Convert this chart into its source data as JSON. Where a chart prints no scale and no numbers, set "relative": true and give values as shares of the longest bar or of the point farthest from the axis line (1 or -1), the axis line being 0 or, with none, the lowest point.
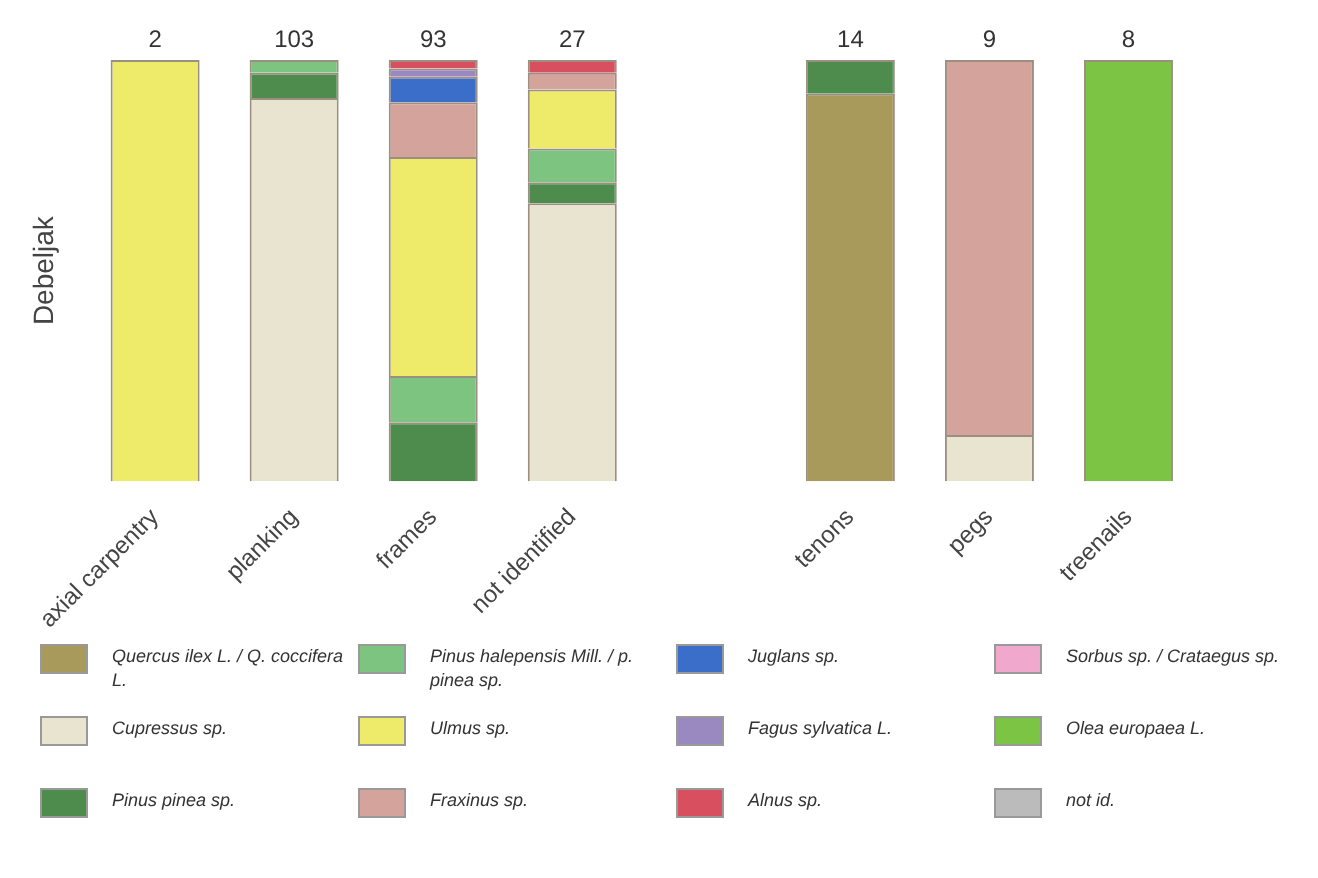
{
  "chart_data": {
    "type": "bar",
    "stacked": true,
    "relative": true,
    "ylabel": "Debeljak",
    "legend": "bottom",
    "grid": false,
    "categories": [
      "axial carpentry",
      "planking",
      "frames",
      "not identified",
      null,
      "tenons",
      "pegs",
      "treenails"
    ],
    "annotations": [
      {
        "text": "2",
        "x": "axial carpentry",
        "y": 1
      },
      {
        "text": "103",
        "x": "planking",
        "y": 1
      },
      {
        "text": "93",
        "x": "frames",
        "y": 1
      },
      {
        "text": "27",
        "x": "not identified",
        "y": 1
      },
      {
        "text": "14",
        "x": "tenons",
        "y": 1
      },
      {
        "text": "9",
        "x": "pegs",
        "y": 1
      },
      {
        "text": "8",
        "x": "treenails",
        "y": 1
      }
    ],
    "series": [
      {
        "name": "Quercus ilex L. / Q. coccifera L.",
        "color": "#a89a5a",
        "values": [
          null,
          null,
          null,
          null,
          null,
          0.92,
          null,
          null
        ]
      },
      {
        "name": "Cupressus sp.",
        "color": "#e8e4d0",
        "values": [
          null,
          0.91,
          null,
          0.66,
          null,
          null,
          0.11,
          null
        ]
      },
      {
        "name": "Pinus pinea sp.",
        "color": "#4e8c4e",
        "values": [
          null,
          0.06,
          0.14,
          0.05,
          null,
          0.08,
          null,
          null
        ]
      },
      {
        "name": "Pinus halepensis Mill. / p. pinea sp.",
        "color": "#7cc47f",
        "values": [
          null,
          0.03,
          0.11,
          0.08,
          null,
          null,
          null,
          null
        ]
      },
      {
        "name": "Ulmus sp.",
        "color": "#eeea6a",
        "values": [
          1,
          null,
          0.52,
          0.14,
          null,
          null,
          null,
          null
        ]
      },
      {
        "name": "Fraxinus sp.",
        "color": "#d4a49c",
        "values": [
          null,
          null,
          0.13,
          0.04,
          null,
          null,
          0.89,
          null
        ]
      },
      {
        "name": "Juglans sp.",
        "color": "#3a6ec8",
        "values": [
          null,
          null,
          0.06,
          null,
          null,
          null,
          null,
          null
        ]
      },
      {
        "name": "Fagus sylvatica L.",
        "color": "#9a88c0",
        "values": [
          null,
          null,
          0.02,
          null,
          null,
          null,
          null,
          null
        ]
      },
      {
        "name": "Alnus sp.",
        "color": "#d85060",
        "values": [
          null,
          null,
          0.02,
          0.03,
          null,
          null,
          null,
          null
        ]
      },
      {
        "name": "Sorbus sp. / Crataegus sp.",
        "color": "#f0a8cc",
        "values": [
          null,
          null,
          null,
          null,
          null,
          null,
          null,
          null
        ]
      },
      {
        "name": "Olea europaea L.",
        "color": "#7cc444",
        "values": [
          null,
          null,
          null,
          null,
          null,
          null,
          null,
          1
        ]
      },
      {
        "name": "not id.",
        "color": "#bbbbbb",
        "values": [
          null,
          null,
          null,
          null,
          null,
          null,
          null,
          null
        ]
      }
    ]
  }
}
